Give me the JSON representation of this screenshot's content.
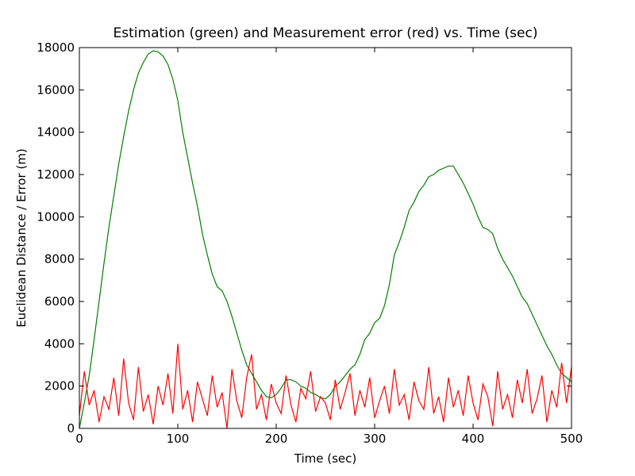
{
  "chart_data": {
    "type": "line",
    "title": "Estimation (green) and Measurement error (red) vs. Time (sec)",
    "x_label": "Time (sec)",
    "y_label": "Euclidean Distance / Error (m)",
    "xlim": [
      0,
      500
    ],
    "xticks": [
      0,
      100,
      200,
      300,
      400,
      500
    ],
    "ylim": [
      0,
      18000
    ],
    "yticks": [
      0,
      2000,
      4000,
      6000,
      8000,
      10000,
      12000,
      14000,
      16000,
      18000
    ],
    "grid": false,
    "x": [
      0,
      5,
      10,
      15,
      20,
      25,
      30,
      35,
      40,
      45,
      50,
      55,
      60,
      65,
      70,
      75,
      80,
      85,
      90,
      95,
      100,
      105,
      110,
      115,
      120,
      125,
      130,
      135,
      140,
      145,
      150,
      155,
      160,
      165,
      170,
      175,
      180,
      185,
      190,
      195,
      200,
      205,
      210,
      215,
      220,
      225,
      230,
      235,
      240,
      245,
      250,
      255,
      260,
      265,
      270,
      275,
      280,
      285,
      290,
      295,
      300,
      305,
      310,
      315,
      320,
      325,
      330,
      335,
      340,
      345,
      350,
      355,
      360,
      365,
      370,
      375,
      380,
      385,
      390,
      395,
      400,
      405,
      410,
      415,
      420,
      425,
      430,
      435,
      440,
      445,
      450,
      455,
      460,
      465,
      470,
      475,
      480,
      485,
      490,
      495,
      500
    ],
    "series": [
      {
        "name": "Estimation",
        "color": "#008000",
        "values": [
          0,
          1200,
          2500,
          4200,
          6000,
          7800,
          9500,
          11000,
          12500,
          13800,
          15000,
          16000,
          16800,
          17300,
          17700,
          17850,
          17800,
          17600,
          17200,
          16500,
          15500,
          14000,
          12800,
          11600,
          10500,
          9200,
          8200,
          7300,
          6700,
          6500,
          6000,
          5300,
          4500,
          3700,
          3000,
          2600,
          2200,
          1800,
          1500,
          1450,
          1600,
          1900,
          2300,
          2300,
          2200,
          2000,
          1900,
          1700,
          1600,
          1450,
          1400,
          1600,
          2000,
          2200,
          2500,
          2800,
          3000,
          3500,
          4200,
          4500,
          5000,
          5200,
          5800,
          6800,
          8200,
          8800,
          9500,
          10300,
          10700,
          11200,
          11500,
          11900,
          12000,
          12200,
          12300,
          12400,
          12400,
          12000,
          11600,
          11100,
          10600,
          10000,
          9500,
          9400,
          9200,
          8500,
          8000,
          7600,
          7200,
          6700,
          6200,
          5900,
          5400,
          4900,
          4400,
          3900,
          3500,
          3000,
          2600,
          2400,
          2200
        ]
      },
      {
        "name": "Measurement error",
        "color": "#ff0000",
        "values": [
          600,
          2700,
          1100,
          1800,
          300,
          1500,
          900,
          2400,
          600,
          3300,
          1200,
          400,
          2900,
          800,
          1600,
          200,
          2000,
          1100,
          2600,
          700,
          4000,
          900,
          1800,
          300,
          2200,
          1400,
          600,
          2500,
          1000,
          1700,
          0,
          2800,
          1300,
          500,
          2400,
          3500,
          900,
          1600,
          400,
          2100,
          1200,
          700,
          2500,
          1100,
          300,
          1900,
          1400,
          2700,
          800,
          1500,
          1200,
          400,
          2300,
          900,
          1700,
          2600,
          600,
          1800,
          1000,
          2400,
          500,
          1300,
          2000,
          700,
          2800,
          1100,
          1600,
          400,
          2200,
          1300,
          900,
          2900,
          700,
          1500,
          300,
          2400,
          1000,
          1800,
          600,
          2500,
          1200,
          400,
          2100,
          1500,
          100,
          2700,
          900,
          1600,
          500,
          2300,
          1200,
          2800,
          700,
          1400,
          2500,
          300,
          1800,
          1000,
          3100,
          1200,
          2900
        ]
      }
    ]
  }
}
